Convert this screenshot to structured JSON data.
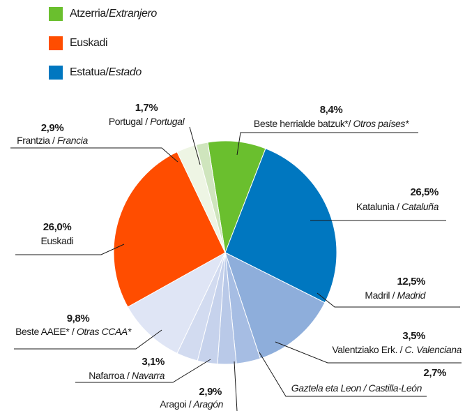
{
  "chart_data": {
    "type": "pie",
    "legend": [
      {
        "name": "Atzerria/Extranjero",
        "color": "#6abf2e"
      },
      {
        "name": "Euskadi",
        "color": "#ff4d00"
      },
      {
        "name": "Estatua/Estado",
        "color": "#0077c0"
      }
    ],
    "categories": [
      "Beste herrialde batzuk*/ Otros países*",
      "Katalunia / Cataluña",
      "Madril / Madrid",
      "Valentziako Erk. / C. Valenciana",
      "Gaztela eta Leon / Castilla-León",
      "Aragoi / Aragón",
      "Nafarroa / Navarra",
      "Beste AAEE* / Otras CCAA*",
      "Euskadi",
      "Frantzia / Francia",
      "Portugal / Portugal"
    ],
    "values": [
      8.4,
      26.5,
      12.5,
      3.5,
      2.7,
      2.9,
      3.1,
      9.8,
      26.0,
      2.9,
      1.7
    ],
    "value_labels": [
      "8,4%",
      "26,5%",
      "12,5%",
      "3,5%",
      "2,7%",
      "2,9%",
      "3,1%",
      "9,8%",
      "26,0%",
      "2,9%",
      "1,7%"
    ],
    "colors": [
      "#6abf2e",
      "#0077c0",
      "#8eaedb",
      "#a6bde3",
      "#b9c9e8",
      "#c6d2ec",
      "#d2dbf0",
      "#dfe5f5",
      "#ff4d00",
      "#eef5e4",
      "#cfe5bd"
    ]
  }
}
